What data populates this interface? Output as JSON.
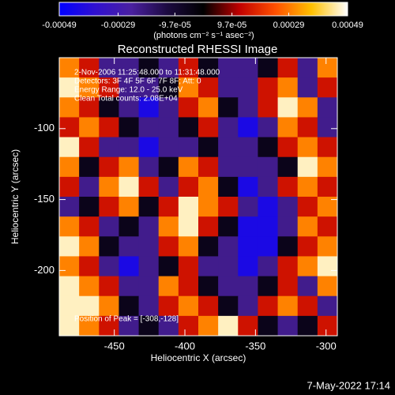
{
  "chart_data": {
    "type": "heatmap",
    "title": "Reconstructed RHESSI Image",
    "x_label": "Heliocentric X (arcsec)",
    "y_label": "Heliocentric Y (arcsec)",
    "colorbar_label": "(photons cm⁻² s⁻¹ asec⁻²)",
    "annotations": [
      "2-Nov-2006 11:25:48.000 to 11:31:48.000",
      "Detectors: 3F 4F 5F 6F 7F 8F; Att: 0",
      "Energy Range: 12.0 - 25.0 keV",
      "Clean    Total counts: 2.08E+04"
    ],
    "peak_label": "Position of Peak = [-308,-128]",
    "footer": "7-May-2022 17:14",
    "xlim": [
      -489,
      -292
    ],
    "xticks": [
      -450,
      -400,
      -350,
      -300
    ],
    "ylim": [
      -246,
      -50
    ],
    "yticks": [
      -100,
      -150,
      -200
    ],
    "zlim": [
      -0.00049,
      0.00049
    ],
    "zticks": [
      -0.00049,
      -0.00029,
      {
        "value": -9.7e-05,
        "label": "-9.7e-05"
      },
      {
        "value": 9.7e-05,
        "label": "9.7e-05"
      },
      0.00029,
      0.00049
    ],
    "colors": [
      "#0000ff",
      "#3010d0",
      "#4a20a0",
      "#1c0a40",
      "#000000",
      "#c00000",
      "#ff5000",
      "#ffc000",
      "#ffffff"
    ],
    "z": [
      [
        0.0003,
        0.00015,
        -0.00022,
        -0.00022,
        -5e-05,
        -0.00022,
        0.00015,
        -5e-05,
        -0.00022,
        -0.00022,
        -5e-05,
        0.00015,
        -0.00022,
        0.0003
      ],
      [
        0.00046,
        0.0003,
        0.00015,
        -0.00022,
        -0.00022,
        -5e-05,
        0.0003,
        0.00015,
        -0.00022,
        -0.00022,
        0.00015,
        0.0003,
        -0.00022,
        0.00015
      ],
      [
        0.0003,
        0.00015,
        -5e-05,
        -0.00022,
        -0.00042,
        -0.00022,
        0.00015,
        0.0003,
        -5e-05,
        -0.00022,
        0.00015,
        0.00046,
        0.0003,
        -0.00022
      ],
      [
        0.00015,
        0.0003,
        0.00015,
        -5e-05,
        -0.00022,
        -0.00022,
        -5e-05,
        0.00015,
        -0.00022,
        -0.00042,
        -0.00022,
        0.0003,
        0.00015,
        -0.00022
      ],
      [
        0.00046,
        0.00015,
        -0.00022,
        -0.00022,
        -0.00042,
        -0.00022,
        -0.00022,
        -5e-05,
        -0.00022,
        -0.00022,
        -5e-05,
        0.00015,
        0.0003,
        0.00015
      ],
      [
        0.0003,
        -5e-05,
        0.00015,
        0.0003,
        -0.00022,
        -5e-05,
        0.0003,
        0.00015,
        -0.00022,
        -0.00022,
        -0.00022,
        -5e-05,
        0.00046,
        0.0003
      ],
      [
        0.00015,
        -0.00022,
        0.0003,
        0.00046,
        0.00015,
        -0.00022,
        0.00015,
        0.0003,
        -5e-05,
        -0.00042,
        -0.00022,
        0.00015,
        0.0003,
        0.00015
      ],
      [
        -0.00022,
        -5e-05,
        0.00015,
        0.0003,
        -5e-05,
        0.00015,
        0.00046,
        0.0003,
        0.00015,
        -0.00022,
        -0.00042,
        -0.00022,
        0.00015,
        0.0003
      ],
      [
        0.0003,
        0.00015,
        -0.00022,
        -5e-05,
        -0.00022,
        0.0003,
        0.00046,
        0.00015,
        -5e-05,
        -0.00042,
        -0.00042,
        -0.00022,
        0.0003,
        0.00015
      ],
      [
        0.00046,
        0.0003,
        -5e-05,
        -0.00022,
        -0.00022,
        0.00015,
        0.0003,
        -5e-05,
        -0.00022,
        -0.00042,
        -0.00042,
        -5e-05,
        0.00015,
        0.0003
      ],
      [
        0.0003,
        0.00015,
        -0.00022,
        -0.00042,
        -0.00022,
        -5e-05,
        0.00015,
        -0.00022,
        -0.00022,
        -0.00042,
        -0.00022,
        0.00015,
        0.0003,
        0.00046
      ],
      [
        0.00046,
        0.0003,
        0.00015,
        -0.00022,
        -0.00022,
        0.0003,
        0.00015,
        -5e-05,
        -0.00022,
        -0.00022,
        -5e-05,
        0.00015,
        -0.00022,
        0.0003
      ],
      [
        0.00046,
        0.00046,
        0.0003,
        -5e-05,
        -0.00022,
        0.00015,
        0.0003,
        0.00015,
        -5e-05,
        -0.00022,
        0.00015,
        0.0003,
        0.00015,
        -0.00022
      ],
      [
        0.00046,
        0.0003,
        0.00015,
        -0.00022,
        -5e-05,
        -0.00022,
        0.00015,
        0.0003,
        0.00046,
        0.00015,
        -5e-05,
        -0.00022,
        -5e-05,
        0.00015
      ]
    ]
  }
}
